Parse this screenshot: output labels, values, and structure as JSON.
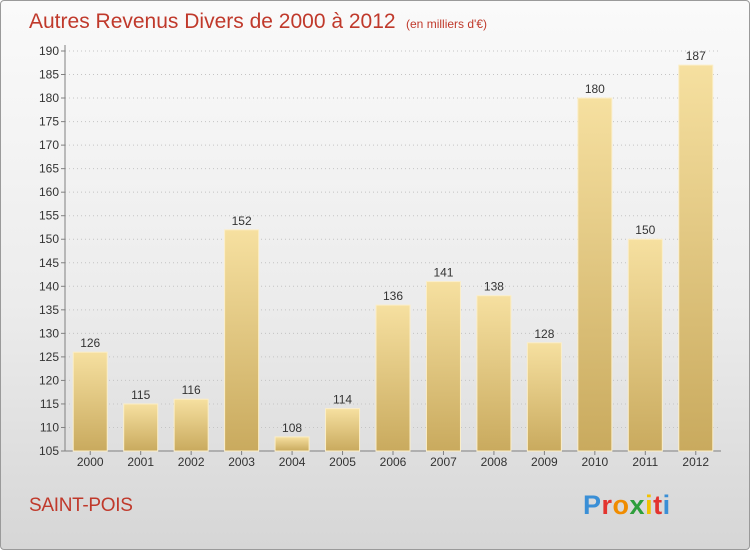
{
  "title": "Autres Revenus Divers de 2000 à 2012",
  "subtitle": "(en milliers d'€)",
  "commune": "SAINT-POIS",
  "brand": {
    "letters": [
      "P",
      "r",
      "o",
      "x",
      "i",
      "t",
      "i"
    ],
    "colors": [
      "#3a8fd6",
      "#e3342f",
      "#f08c00",
      "#2e9e3b",
      "#f2c200",
      "#e3342f",
      "#3a8fd6"
    ]
  },
  "colors": {
    "title": "#c0392b",
    "bar_light": "#f6e0a0",
    "bar_dark": "#c9aa5e",
    "axis": "#808080",
    "grid": "#c4c4c4",
    "label": "#333333"
  },
  "chart_data": {
    "type": "bar",
    "categories": [
      "2000",
      "2001",
      "2002",
      "2003",
      "2004",
      "2005",
      "2006",
      "2007",
      "2008",
      "2009",
      "2010",
      "2011",
      "2012"
    ],
    "values": [
      126,
      115,
      116,
      152,
      108,
      114,
      136,
      141,
      138,
      128,
      180,
      150,
      187
    ],
    "ylim": [
      105,
      190
    ],
    "yticks": [
      105,
      110,
      115,
      120,
      125,
      130,
      135,
      140,
      145,
      150,
      155,
      160,
      165,
      170,
      175,
      180,
      185,
      190
    ],
    "grid": true,
    "data_labels": true
  }
}
